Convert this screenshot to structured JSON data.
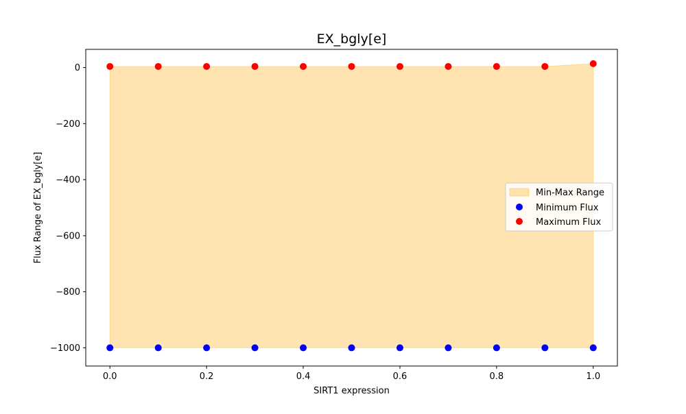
{
  "chart_data": {
    "type": "scatter",
    "title": "EX_bgly[e]",
    "xlabel": "SIRT1 expression",
    "ylabel": "Flux Range of EX_bgly[e]",
    "xlim": [
      -0.05,
      1.05
    ],
    "ylim": [
      -1065,
      65
    ],
    "x_ticks": [
      0.0,
      0.2,
      0.4,
      0.6,
      0.8,
      1.0
    ],
    "x_tick_labels": [
      "0.0",
      "0.2",
      "0.4",
      "0.6",
      "0.8",
      "1.0"
    ],
    "y_ticks": [
      0,
      -200,
      -400,
      -600,
      -800,
      -1000
    ],
    "y_tick_labels": [
      "0",
      "−200",
      "−400",
      "−600",
      "−800",
      "−1000"
    ],
    "x": [
      0.0,
      0.1,
      0.2,
      0.3,
      0.4,
      0.5,
      0.6,
      0.7,
      0.8,
      0.9,
      1.0
    ],
    "series": [
      {
        "name": "Minimum Flux",
        "color": "#0000ff",
        "values": [
          -1000,
          -1000,
          -1000,
          -1000,
          -1000,
          -1000,
          -1000,
          -1000,
          -1000,
          -1000,
          -1000
        ]
      },
      {
        "name": "Maximum Flux",
        "color": "#ff0000",
        "values": [
          4,
          4,
          4,
          4,
          4,
          4,
          4,
          4,
          4,
          4,
          14
        ]
      }
    ],
    "range_fill": {
      "name": "Min-Max Range",
      "color": "#ffa500",
      "opacity": 0.3
    },
    "legend": {
      "position": "center-right",
      "entries": [
        "Min-Max Range",
        "Minimum Flux",
        "Maximum Flux"
      ]
    },
    "grid": false
  }
}
